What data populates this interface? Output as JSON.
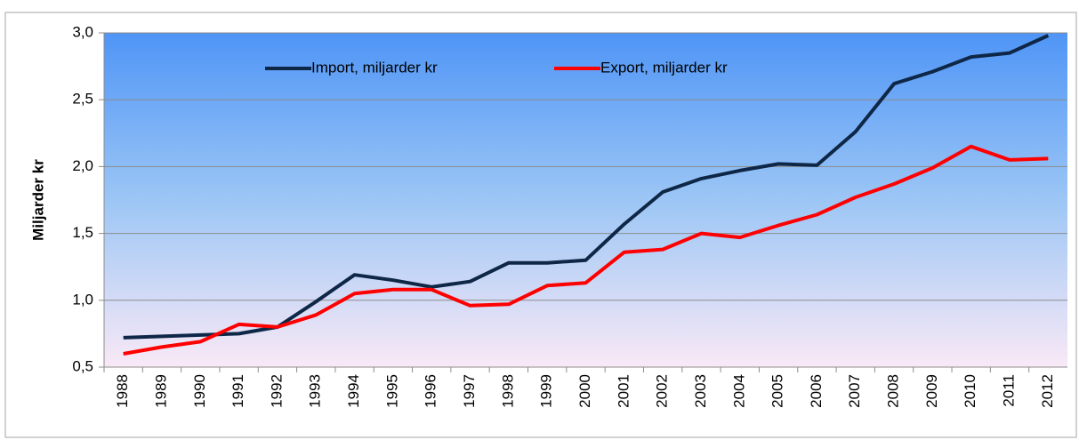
{
  "chart_data": {
    "type": "line",
    "y_label": "Miljarder kr",
    "categories": [
      "1988",
      "1989",
      "1990",
      "1991",
      "1992",
      "1993",
      "1994",
      "1995",
      "1996",
      "1997",
      "1998",
      "1999",
      "2000",
      "2001",
      "2002",
      "2003",
      "2004",
      "2005",
      "2006",
      "2007",
      "2008",
      "2009",
      "2010",
      "2011",
      "2012"
    ],
    "series": [
      {
        "name": "Import, miljarder kr",
        "color": "#0f2747",
        "values": [
          0.72,
          0.73,
          0.74,
          0.75,
          0.8,
          0.99,
          1.19,
          1.15,
          1.1,
          1.14,
          1.28,
          1.28,
          1.3,
          1.57,
          1.81,
          1.91,
          1.97,
          2.02,
          2.01,
          2.26,
          2.62,
          2.71,
          2.82,
          2.85,
          2.98
        ]
      },
      {
        "name": "Export, miljarder kr",
        "color": "#ff0000",
        "values": [
          0.6,
          0.65,
          0.69,
          0.82,
          0.8,
          0.89,
          1.05,
          1.08,
          1.08,
          0.96,
          0.97,
          1.11,
          1.13,
          1.36,
          1.38,
          1.5,
          1.47,
          1.56,
          1.64,
          1.77,
          1.87,
          1.99,
          2.15,
          2.05,
          2.06
        ]
      }
    ],
    "ylim": [
      0.5,
      3.0
    ],
    "yticks": [
      {
        "value": 0.5,
        "label": "0,5"
      },
      {
        "value": 1.0,
        "label": "1,0"
      },
      {
        "value": 1.5,
        "label": "1,5"
      },
      {
        "value": 2.0,
        "label": "2,0"
      },
      {
        "value": 2.5,
        "label": "2,5"
      },
      {
        "value": 3.0,
        "label": "3,0"
      }
    ],
    "grid": true,
    "legend": "top"
  }
}
